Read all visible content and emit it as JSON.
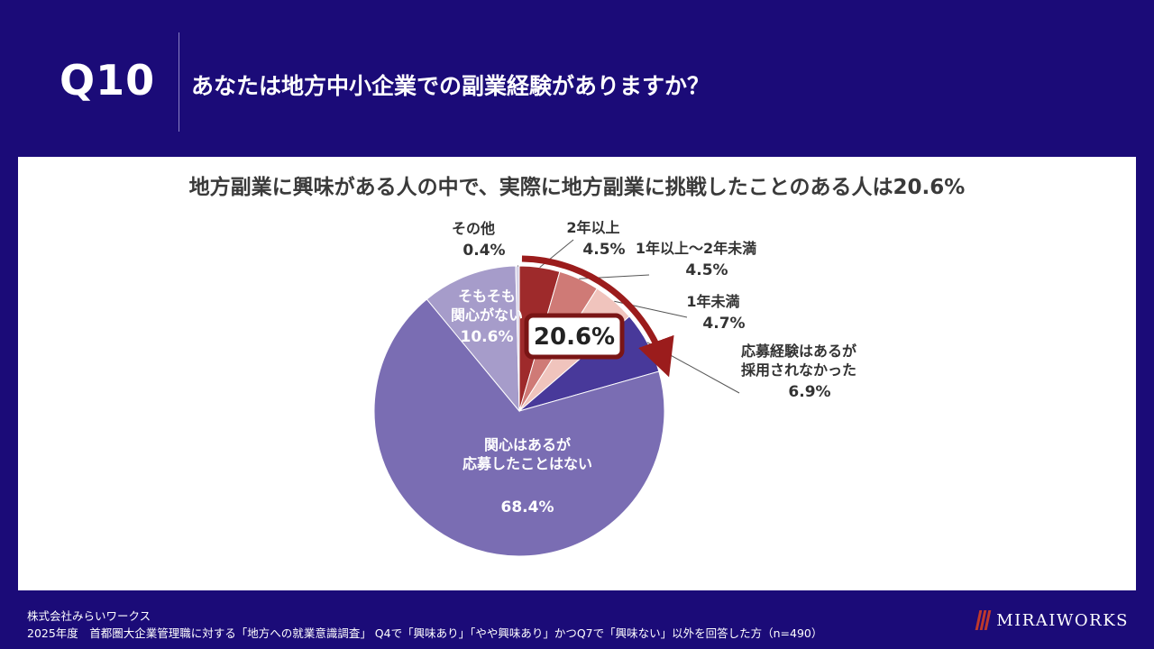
{
  "header": {
    "question_number": "Q10",
    "question_text": "あなたは地方中小企業での副業経験がありますか？"
  },
  "chart_data": {
    "type": "pie",
    "title": "地方副業に興味がある人の中で、実際に地方副業に挑戦したことのある人は20.6%",
    "callout": "20.6%",
    "slices": [
      {
        "label_lines": [
          "2年以上"
        ],
        "percent_label": "4.5%",
        "value": 4.5,
        "color": "#9e2a2b"
      },
      {
        "label_lines": [
          "1年以上～2年未満"
        ],
        "percent_label": "4.5%",
        "value": 4.5,
        "color": "#cf7a76"
      },
      {
        "label_lines": [
          "1年未満"
        ],
        "percent_label": "4.7%",
        "value": 4.7,
        "color": "#f0c4bd"
      },
      {
        "label_lines": [
          "応募経験はあるが",
          "採用されなかった"
        ],
        "percent_label": "6.9%",
        "value": 6.9,
        "color": "#48399a"
      },
      {
        "label_lines": [
          "関心はあるが",
          "応募したことはない"
        ],
        "percent_label": "68.4%",
        "value": 68.4,
        "color": "#7a6db3"
      },
      {
        "label_lines": [
          "そもそも",
          "関心がない"
        ],
        "percent_label": "10.6%",
        "value": 10.6,
        "color": "#a69cca"
      },
      {
        "label_lines": [
          "その他"
        ],
        "percent_label": "0.4%",
        "value": 0.4,
        "color": "#d6d3e8"
      }
    ]
  },
  "footer": {
    "company": "株式会社みらいワークス",
    "source": "2025年度　首都圏大企業管理職に対する「地方への就業意識調査」 Q4で「興味あり」「やや興味あり」かつQ7で「興味ない」以外を回答した方（n=490）"
  },
  "logo": {
    "text": "MIRAIWORKS"
  }
}
